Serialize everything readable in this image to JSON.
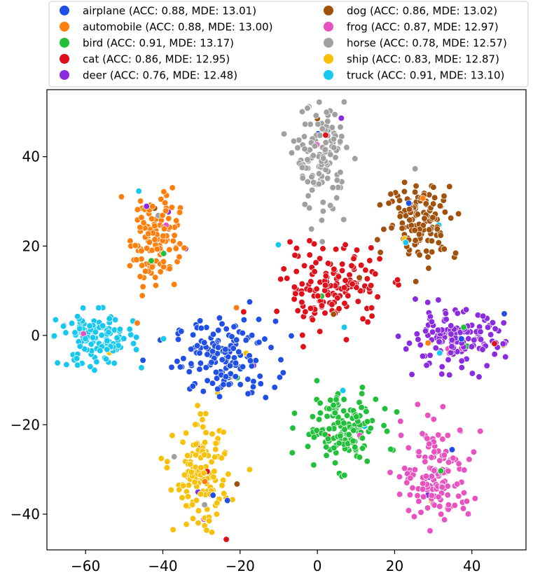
{
  "chart_data": {
    "type": "scatter",
    "title": "",
    "xlabel": "",
    "ylabel": "",
    "xlim": [
      -70,
      54
    ],
    "ylim": [
      -48,
      55
    ],
    "xticks": [
      -60,
      -40,
      -20,
      0,
      20,
      40
    ],
    "yticks": [
      -40,
      -20,
      0,
      20,
      40
    ],
    "xtick_labels": [
      "−60",
      "−40",
      "−20",
      "0",
      "20",
      "40"
    ],
    "ytick_labels": [
      "−40",
      "−20",
      "0",
      "20",
      "40"
    ],
    "grid": false,
    "legend_position": "top",
    "series": [
      {
        "name": "airplane",
        "legend_label": "airplane (ACC: 0.88, MDE: 13.01)",
        "acc": 0.88,
        "mde": 13.01,
        "color": "#1f4fe6",
        "center": [
          -24,
          -5
        ],
        "spread": [
          6.5,
          4.2
        ],
        "count": 150
      },
      {
        "name": "automobile",
        "legend_label": "automobile (ACC: 0.88, MDE: 13.00)",
        "acc": 0.88,
        "mde": 13.0,
        "color": "#ff7f0e",
        "center": [
          -42,
          22
        ],
        "spread": [
          3.2,
          5.5
        ],
        "count": 120
      },
      {
        "name": "bird",
        "legend_label": "bird (ACC: 0.91, MDE: 13.17)",
        "acc": 0.91,
        "mde": 13.17,
        "color": "#22c03a",
        "center": [
          6,
          -21
        ],
        "spread": [
          5.0,
          4.0
        ],
        "count": 145
      },
      {
        "name": "cat",
        "legend_label": "cat (ACC: 0.86, MDE: 12.95)",
        "acc": 0.86,
        "mde": 12.95,
        "color": "#e0101a",
        "center": [
          4,
          11
        ],
        "spread": [
          6.5,
          4.5
        ],
        "count": 150
      },
      {
        "name": "deer",
        "legend_label": "deer (ACC: 0.76, MDE: 12.48)",
        "acc": 0.76,
        "mde": 12.48,
        "color": "#8a2be2",
        "center": [
          35,
          -1
        ],
        "spread": [
          6.5,
          3.2
        ],
        "count": 140
      },
      {
        "name": "dog",
        "legend_label": "dog (ACC: 0.86, MDE: 13.02)",
        "acc": 0.86,
        "mde": 13.02,
        "color": "#a0520d",
        "center": [
          27,
          26
        ],
        "spread": [
          4.5,
          4.2
        ],
        "count": 130
      },
      {
        "name": "frog",
        "legend_label": "frog (ACC: 0.87, MDE: 12.97)",
        "acc": 0.87,
        "mde": 12.97,
        "color": "#e752c0",
        "center": [
          31,
          -31
        ],
        "spread": [
          4.5,
          5.5
        ],
        "count": 140
      },
      {
        "name": "horse",
        "legend_label": "horse (ACC: 0.78, MDE: 12.57)",
        "acc": 0.78,
        "mde": 12.57,
        "color": "#a0a0a0",
        "center": [
          1,
          40
        ],
        "spread": [
          3.2,
          5.8
        ],
        "count": 140
      },
      {
        "name": "ship",
        "legend_label": "ship (ACC: 0.83, MDE: 12.87)",
        "acc": 0.83,
        "mde": 12.87,
        "color": "#f7c10a",
        "center": [
          -30,
          -32
        ],
        "spread": [
          3.5,
          5.8
        ],
        "count": 140
      },
      {
        "name": "truck",
        "legend_label": "truck (ACC: 0.91, MDE: 13.10)",
        "acc": 0.91,
        "mde": 13.1,
        "color": "#16c8f0",
        "center": [
          -57,
          -1
        ],
        "spread": [
          4.8,
          3.0
        ],
        "count": 130
      }
    ]
  }
}
